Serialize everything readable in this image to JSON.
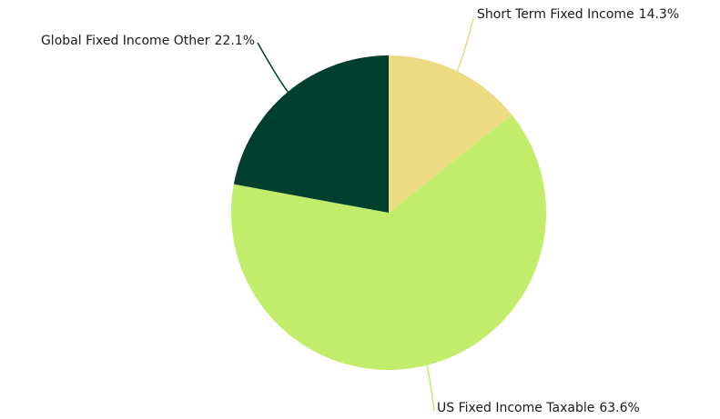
{
  "chart_data": {
    "type": "pie",
    "categories": [
      "Short Term Fixed Income",
      "US Fixed Income Taxable",
      "Global Fixed Income Other"
    ],
    "values": [
      14.3,
      63.6,
      22.1
    ],
    "value_labels": [
      "14.3%",
      "63.6%",
      "22.1%"
    ],
    "colors": [
      "#eddb82",
      "#c1ed6b",
      "#003f2d"
    ]
  }
}
